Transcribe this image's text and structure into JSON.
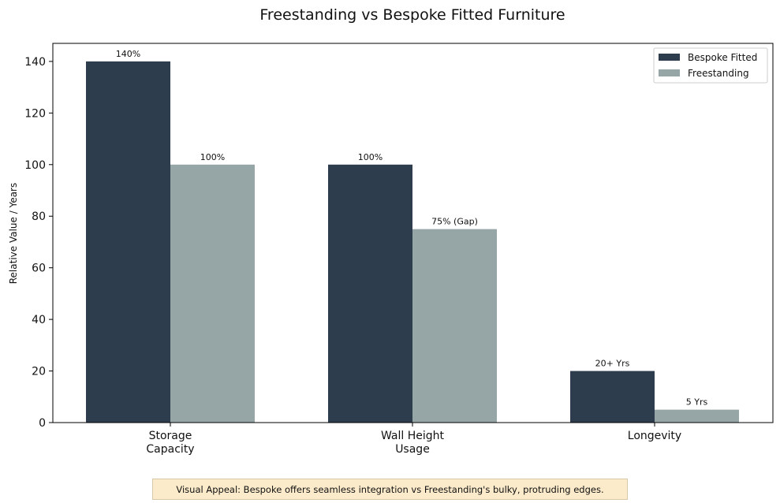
{
  "chart_data": {
    "type": "bar",
    "title": "Freestanding vs Bespoke Fitted Furniture",
    "xlabel": "",
    "ylabel": "Relative Value / Years",
    "ylim": [
      0,
      147
    ],
    "yticks": [
      0,
      20,
      40,
      60,
      80,
      100,
      120,
      140
    ],
    "categories": [
      [
        "Storage",
        "Capacity"
      ],
      [
        "Wall Height",
        "Usage"
      ],
      [
        "Longevity"
      ]
    ],
    "series": [
      {
        "name": "Bespoke Fitted",
        "color": "#2e3d4e",
        "values": [
          140,
          100,
          20
        ],
        "labels": [
          "140%",
          "100%",
          "20+ Yrs"
        ]
      },
      {
        "name": "Freestanding",
        "color": "#96a5a6",
        "values": [
          100,
          75,
          5
        ],
        "labels": [
          "100%",
          "75% (Gap)",
          "5 Yrs"
        ]
      }
    ],
    "legend_position": "top-right",
    "grid": false
  },
  "annotation": {
    "text": "Visual Appeal: Bespoke offers seamless integration vs Freestanding's bulky, protruding edges.",
    "background": "#fcebcb"
  }
}
